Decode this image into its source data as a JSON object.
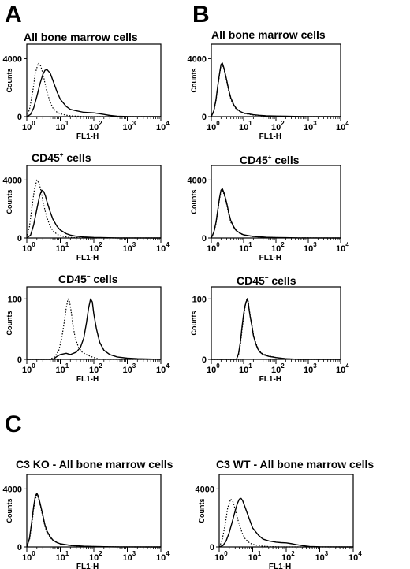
{
  "panels": {
    "A": "A",
    "B": "B",
    "C": "C"
  },
  "chart_data": [
    {
      "id": "A1",
      "type": "histogram",
      "panel": "A",
      "title": "All bone marrow cells",
      "title_sup": "",
      "xlabel": "FL1-H",
      "ylabel": "Counts",
      "xscale": "log",
      "xlim": [
        1,
        10000
      ],
      "yticks": [
        "0",
        "4000"
      ],
      "ylim": [
        0,
        5000
      ],
      "xticks": [
        "10",
        "10",
        "10",
        "10",
        "10"
      ],
      "xtick_exp": [
        "0",
        "1",
        "2",
        "3",
        "4"
      ],
      "series": [
        {
          "style": "solid",
          "x": [
            1,
            1.3,
            1.6,
            2,
            2.5,
            3,
            3.5,
            4,
            5,
            6,
            8,
            10,
            15,
            20,
            30,
            50,
            70,
            100,
            150,
            200,
            300,
            500,
            1000,
            10000
          ],
          "y": [
            0,
            150,
            600,
            1400,
            2300,
            2900,
            3200,
            3250,
            3000,
            2500,
            1700,
            1200,
            700,
            500,
            400,
            300,
            280,
            260,
            200,
            150,
            80,
            30,
            10,
            0
          ]
        },
        {
          "style": "dotted",
          "x": [
            1,
            1.2,
            1.5,
            1.8,
            2.2,
            2.6,
            3,
            3.5,
            4,
            5,
            6,
            8,
            10,
            15,
            20,
            30,
            50,
            100,
            10000
          ],
          "y": [
            0,
            500,
            1700,
            3000,
            3700,
            3500,
            3000,
            2300,
            1700,
            1000,
            600,
            300,
            200,
            100,
            60,
            30,
            10,
            0,
            0
          ]
        }
      ]
    },
    {
      "id": "B1",
      "type": "histogram",
      "panel": "B",
      "title": "All bone marrow cells",
      "title_sup": "",
      "xlabel": "FL1-H",
      "ylabel": "Counts",
      "xscale": "log",
      "xlim": [
        1,
        10000
      ],
      "yticks": [
        "0",
        "4000"
      ],
      "ylim": [
        0,
        5000
      ],
      "xticks": [
        "10",
        "10",
        "10",
        "10",
        "10"
      ],
      "xtick_exp": [
        "0",
        "1",
        "2",
        "3",
        "4"
      ],
      "series": [
        {
          "style": "solid",
          "x": [
            1,
            1.2,
            1.4,
            1.6,
            1.8,
            2,
            2.2,
            2.5,
            3,
            3.5,
            4,
            5,
            6,
            8,
            10,
            15,
            20,
            30,
            50,
            100,
            200,
            500,
            1000,
            10000
          ],
          "y": [
            0,
            400,
            1200,
            2200,
            3000,
            3600,
            3700,
            3300,
            2500,
            1800,
            1300,
            800,
            550,
            350,
            250,
            180,
            130,
            90,
            60,
            40,
            25,
            10,
            5,
            0
          ]
        },
        {
          "style": "dotted",
          "x": [
            1,
            1.2,
            1.4,
            1.6,
            1.8,
            2,
            2.2,
            2.5,
            3,
            3.5,
            4,
            5,
            6,
            8,
            10,
            15,
            20,
            30,
            50,
            100,
            200,
            500,
            1000,
            10000
          ],
          "y": [
            0,
            350,
            1100,
            2100,
            2900,
            3500,
            3600,
            3200,
            2400,
            1700,
            1200,
            750,
            500,
            320,
            230,
            160,
            110,
            80,
            50,
            30,
            20,
            8,
            4,
            0
          ]
        }
      ]
    },
    {
      "id": "A2",
      "type": "histogram",
      "panel": "A",
      "title": "CD45",
      "title_sup": "+",
      "title_suffix": " cells",
      "xlabel": "FL1-H",
      "ylabel": "Counts",
      "xscale": "log",
      "xlim": [
        1,
        10000
      ],
      "yticks": [
        "0",
        "4000"
      ],
      "ylim": [
        0,
        5000
      ],
      "xticks": [
        "10",
        "10",
        "10",
        "10",
        "10"
      ],
      "xtick_exp": [
        "0",
        "1",
        "2",
        "3",
        "4"
      ],
      "series": [
        {
          "style": "solid",
          "x": [
            1,
            1.3,
            1.6,
            2,
            2.4,
            2.8,
            3.2,
            3.6,
            4,
            5,
            6,
            8,
            10,
            15,
            20,
            30,
            50,
            100,
            200,
            500,
            10000
          ],
          "y": [
            0,
            200,
            900,
            2000,
            2900,
            3300,
            3200,
            2900,
            2500,
            1800,
            1300,
            800,
            550,
            300,
            200,
            120,
            70,
            40,
            20,
            5,
            0
          ]
        },
        {
          "style": "dotted",
          "x": [
            1,
            1.2,
            1.4,
            1.7,
            2,
            2.3,
            2.7,
            3,
            3.5,
            4,
            5,
            6,
            8,
            10,
            15,
            20,
            30,
            50,
            100,
            10000
          ],
          "y": [
            0,
            800,
            2000,
            3400,
            4000,
            3800,
            3200,
            2600,
            1900,
            1400,
            800,
            500,
            250,
            150,
            70,
            40,
            20,
            10,
            0,
            0
          ]
        }
      ]
    },
    {
      "id": "B2",
      "type": "histogram",
      "panel": "B",
      "title": "CD45",
      "title_sup": "+",
      "title_suffix": " cells",
      "xlabel": "FL1-H",
      "ylabel": "Counts",
      "xscale": "log",
      "xlim": [
        1,
        10000
      ],
      "yticks": [
        "0",
        "4000"
      ],
      "ylim": [
        0,
        5000
      ],
      "xticks": [
        "10",
        "10",
        "10",
        "10",
        "10"
      ],
      "xtick_exp": [
        "0",
        "1",
        "2",
        "3",
        "4"
      ],
      "series": [
        {
          "style": "solid",
          "x": [
            1,
            1.2,
            1.4,
            1.6,
            1.8,
            2,
            2.2,
            2.5,
            3,
            3.5,
            4,
            5,
            6,
            8,
            10,
            15,
            20,
            30,
            50,
            100,
            200,
            500,
            1000,
            10000
          ],
          "y": [
            0,
            400,
            1100,
            2000,
            2800,
            3300,
            3400,
            3100,
            2400,
            1700,
            1200,
            750,
            500,
            320,
            220,
            150,
            110,
            80,
            50,
            30,
            20,
            8,
            4,
            0
          ]
        },
        {
          "style": "dotted",
          "x": [
            1,
            1.2,
            1.4,
            1.6,
            1.8,
            2,
            2.2,
            2.5,
            3,
            3.5,
            4,
            5,
            6,
            8,
            10,
            15,
            20,
            30,
            50,
            100,
            200,
            500,
            1000,
            10000
          ],
          "y": [
            0,
            350,
            1000,
            1900,
            2700,
            3200,
            3300,
            3000,
            2300,
            1600,
            1100,
            700,
            460,
            300,
            200,
            140,
            100,
            70,
            45,
            28,
            18,
            7,
            3,
            0
          ]
        }
      ]
    },
    {
      "id": "A3",
      "type": "histogram",
      "panel": "A",
      "title": "CD45",
      "title_sup": "−",
      "title_suffix": " cells",
      "xlabel": "FL1-H",
      "ylabel": "Counts",
      "xscale": "log",
      "xlim": [
        1,
        10000
      ],
      "yticks": [
        "0",
        "100"
      ],
      "ylim": [
        0,
        120
      ],
      "xticks": [
        "10",
        "10",
        "10",
        "10",
        "10"
      ],
      "xtick_exp": [
        "0",
        "1",
        "2",
        "3",
        "4"
      ],
      "series": [
        {
          "style": "solid",
          "x": [
            1,
            6,
            8,
            10,
            15,
            20,
            30,
            40,
            50,
            60,
            70,
            80,
            90,
            100,
            120,
            150,
            200,
            300,
            500,
            1000,
            2000,
            10000
          ],
          "y": [
            0,
            0,
            5,
            8,
            10,
            8,
            12,
            20,
            35,
            60,
            85,
            100,
            95,
            75,
            50,
            28,
            15,
            8,
            4,
            2,
            1,
            0
          ]
        },
        {
          "style": "dotted",
          "x": [
            1,
            5,
            7,
            9,
            11,
            13,
            15,
            17,
            19,
            21,
            24,
            28,
            35,
            45,
            60,
            80,
            100,
            150,
            10000
          ],
          "y": [
            0,
            0,
            5,
            15,
            35,
            60,
            85,
            100,
            95,
            80,
            55,
            35,
            20,
            12,
            8,
            5,
            3,
            0,
            0
          ]
        }
      ]
    },
    {
      "id": "B3",
      "type": "histogram",
      "panel": "B",
      "title": "CD45",
      "title_sup": "−",
      "title_suffix": " cells",
      "xlabel": "FL1-H",
      "ylabel": "Counts",
      "xscale": "log",
      "xlim": [
        1,
        10000
      ],
      "yticks": [
        "0",
        "100"
      ],
      "ylim": [
        0,
        120
      ],
      "xticks": [
        "10",
        "10",
        "10",
        "10",
        "10"
      ],
      "xtick_exp": [
        "0",
        "1",
        "2",
        "3",
        "4"
      ],
      "series": [
        {
          "style": "solid",
          "x": [
            1,
            6,
            7,
            8,
            9,
            10,
            11,
            12,
            13,
            14,
            15,
            16,
            18,
            20,
            23,
            27,
            32,
            40,
            60,
            100,
            200,
            500,
            10000
          ],
          "y": [
            0,
            0,
            10,
            30,
            55,
            75,
            88,
            95,
            100,
            92,
            80,
            70,
            55,
            40,
            28,
            18,
            12,
            8,
            5,
            3,
            1,
            0,
            0
          ]
        },
        {
          "style": "dotted",
          "x": [
            1,
            6,
            7,
            8,
            9,
            10,
            11,
            12,
            13,
            14,
            15,
            16,
            18,
            20,
            23,
            27,
            32,
            40,
            60,
            100,
            200,
            500,
            10000
          ],
          "y": [
            0,
            0,
            8,
            25,
            50,
            70,
            85,
            97,
            102,
            95,
            82,
            72,
            57,
            42,
            30,
            20,
            13,
            9,
            6,
            3,
            1,
            0,
            0
          ]
        }
      ]
    },
    {
      "id": "C1",
      "type": "histogram",
      "panel": "C",
      "title": "C3 KO - All bone marrow cells",
      "title_sup": "",
      "xlabel": "FL1-H",
      "ylabel": "Counts",
      "xscale": "log",
      "xlim": [
        1,
        10000
      ],
      "yticks": [
        "0",
        "4000"
      ],
      "ylim": [
        0,
        5000
      ],
      "xticks": [
        "10",
        "10",
        "10",
        "10",
        "10"
      ],
      "xtick_exp": [
        "0",
        "1",
        "2",
        "3",
        "4"
      ],
      "series": [
        {
          "style": "solid",
          "x": [
            1,
            1.2,
            1.4,
            1.6,
            1.8,
            2,
            2.2,
            2.5,
            3,
            3.5,
            4,
            5,
            6,
            8,
            10,
            15,
            20,
            30,
            50,
            100,
            200,
            500,
            1000,
            10000
          ],
          "y": [
            0,
            600,
            1700,
            2800,
            3500,
            3700,
            3500,
            3000,
            2200,
            1500,
            1100,
            700,
            480,
            300,
            220,
            150,
            110,
            80,
            50,
            30,
            18,
            8,
            3,
            0
          ]
        },
        {
          "style": "dotted",
          "x": [
            1,
            1.2,
            1.4,
            1.6,
            1.8,
            2,
            2.2,
            2.5,
            3,
            3.5,
            4,
            5,
            6,
            8,
            10,
            15,
            20,
            30,
            50,
            100,
            200,
            500,
            1000,
            10000
          ],
          "y": [
            0,
            500,
            1500,
            2600,
            3300,
            3600,
            3400,
            2900,
            2100,
            1400,
            1000,
            650,
            450,
            280,
            200,
            140,
            100,
            70,
            45,
            25,
            15,
            6,
            2,
            0
          ]
        }
      ]
    },
    {
      "id": "C2",
      "type": "histogram",
      "panel": "C",
      "title": "C3 WT - All bone marrow cells",
      "title_sup": "",
      "xlabel": "FL1-H",
      "ylabel": "Counts",
      "xscale": "log",
      "xlim": [
        1,
        10000
      ],
      "yticks": [
        "0",
        "4000"
      ],
      "ylim": [
        0,
        5000
      ],
      "xticks": [
        "10",
        "10",
        "10",
        "10",
        "10"
      ],
      "xtick_exp": [
        "0",
        "1",
        "2",
        "3",
        "4"
      ],
      "series": [
        {
          "style": "solid",
          "x": [
            1,
            1.3,
            1.6,
            2,
            2.5,
            3,
            3.5,
            4,
            4.5,
            5,
            6,
            8,
            10,
            15,
            20,
            30,
            50,
            70,
            100,
            150,
            200,
            300,
            500,
            1000,
            10000
          ],
          "y": [
            0,
            100,
            400,
            1000,
            1800,
            2500,
            3000,
            3300,
            3350,
            3200,
            2700,
            1900,
            1300,
            800,
            550,
            420,
            330,
            300,
            280,
            220,
            160,
            90,
            35,
            10,
            0
          ]
        },
        {
          "style": "dotted",
          "x": [
            1,
            1.2,
            1.5,
            1.8,
            2.2,
            2.6,
            3,
            3.5,
            4,
            5,
            6,
            8,
            10,
            15,
            20,
            30,
            50,
            100,
            10000
          ],
          "y": [
            0,
            400,
            1500,
            2700,
            3300,
            3100,
            2600,
            2000,
            1500,
            900,
            550,
            280,
            180,
            90,
            50,
            25,
            10,
            0,
            0
          ]
        }
      ]
    }
  ]
}
